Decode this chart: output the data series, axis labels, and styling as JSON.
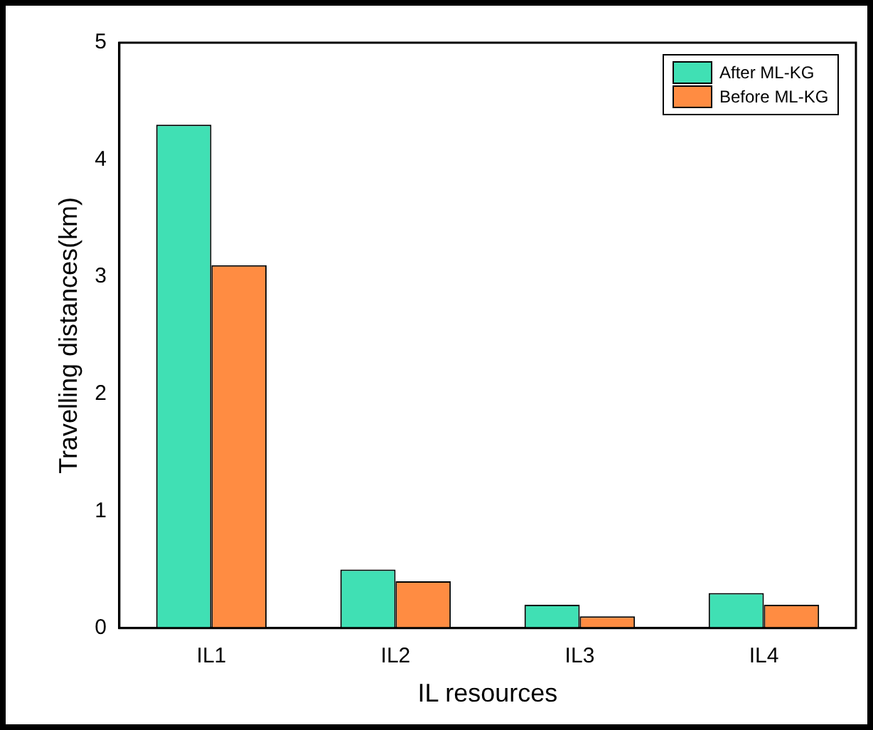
{
  "chart_data": {
    "type": "bar",
    "xlabel": "IL resources",
    "ylabel": "Travelling distances(km)",
    "categories": [
      "IL1",
      "IL2",
      "IL3",
      "IL4"
    ],
    "series": [
      {
        "name": "After ML-KG",
        "color": "#40e0b4",
        "values": [
          4.3,
          0.5,
          0.2,
          0.3
        ]
      },
      {
        "name": "Before ML-KG",
        "color": "#ff8c42",
        "values": [
          3.1,
          0.4,
          0.1,
          0.2
        ]
      }
    ],
    "ylim": [
      0,
      5
    ],
    "yticks": [
      0,
      1,
      2,
      3,
      4,
      5
    ],
    "grid": false,
    "legend": "top right"
  }
}
